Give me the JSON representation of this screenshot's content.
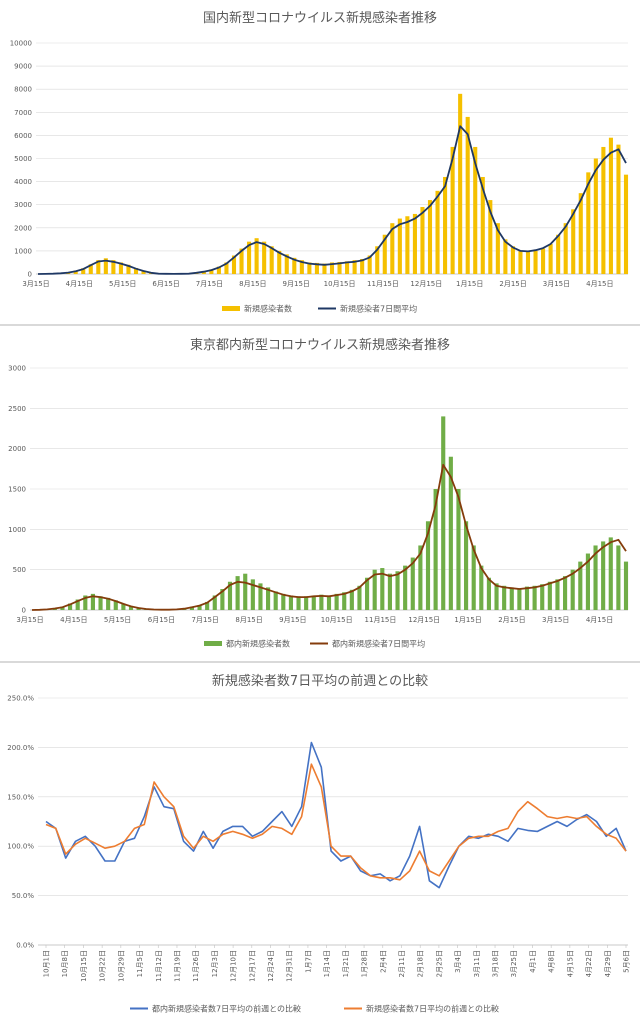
{
  "chart_data": [
    {
      "type": "bar",
      "title": "国内新型コロナウイルス新規感染者推移",
      "x_tick_labels": [
        "3月15日",
        "4月15日",
        "5月15日",
        "6月15日",
        "7月15日",
        "8月15日",
        "9月15日",
        "10月15日",
        "11月15日",
        "12月15日",
        "1月15日",
        "2月15日",
        "3月15日",
        "4月15日"
      ],
      "y_ticks": [
        0,
        1000,
        2000,
        3000,
        4000,
        5000,
        6000,
        7000,
        8000,
        9000,
        10000
      ],
      "ylim": [
        0,
        10000
      ],
      "grid": true,
      "legend_position": "bottom",
      "series": [
        {
          "name": "新規感染者数",
          "kind": "bar",
          "color": "#f5c000",
          "values": [
            0,
            10,
            20,
            40,
            80,
            150,
            250,
            420,
            600,
            680,
            600,
            500,
            400,
            260,
            150,
            60,
            20,
            10,
            5,
            10,
            20,
            60,
            120,
            200,
            320,
            500,
            800,
            1100,
            1400,
            1550,
            1400,
            1200,
            1000,
            850,
            700,
            600,
            500,
            480,
            450,
            500,
            520,
            550,
            600,
            650,
            800,
            1200,
            1700,
            2200,
            2400,
            2500,
            2600,
            2900,
            3200,
            3600,
            4200,
            5500,
            7800,
            6800,
            5500,
            4200,
            3200,
            2200,
            1500,
            1200,
            1000,
            950,
            1000,
            1100,
            1300,
            1700,
            2200,
            2800,
            3500,
            4400,
            5000,
            5500,
            5900,
            5600,
            4300
          ]
        },
        {
          "name": "新規感染者7日間平均",
          "kind": "line",
          "color": "#1f3864",
          "values": [
            0,
            5,
            15,
            30,
            60,
            120,
            210,
            380,
            540,
            580,
            530,
            450,
            350,
            230,
            130,
            50,
            15,
            8,
            5,
            8,
            15,
            50,
            100,
            170,
            280,
            450,
            720,
            1000,
            1250,
            1380,
            1300,
            1120,
            920,
            760,
            620,
            520,
            450,
            420,
            400,
            430,
            460,
            500,
            530,
            590,
            720,
            1050,
            1500,
            1950,
            2150,
            2250,
            2400,
            2650,
            2950,
            3350,
            3800,
            5000,
            6400,
            6050,
            4800,
            3700,
            2700,
            1900,
            1400,
            1150,
            1000,
            980,
            1030,
            1120,
            1300,
            1650,
            2050,
            2600,
            3200,
            3900,
            4500,
            4950,
            5250,
            5400,
            4800
          ]
        }
      ]
    },
    {
      "type": "bar",
      "title": "東京都内新型コロナウイルス新規感染者推移",
      "x_tick_labels": [
        "3月15日",
        "4月15日",
        "5月15日",
        "6月15日",
        "7月15日",
        "8月15日",
        "9月15日",
        "10月15日",
        "11月15日",
        "12月15日",
        "1月15日",
        "2月15日",
        "3月15日",
        "4月15日"
      ],
      "y_ticks": [
        0,
        500,
        1000,
        1500,
        2000,
        2500,
        3000
      ],
      "ylim": [
        0,
        3000
      ],
      "grid": true,
      "legend_position": "bottom",
      "series": [
        {
          "name": "都内新規感染者数",
          "kind": "bar",
          "color": "#70ad47",
          "values": [
            0,
            5,
            10,
            20,
            40,
            80,
            130,
            180,
            200,
            170,
            150,
            120,
            80,
            50,
            30,
            15,
            8,
            5,
            5,
            10,
            20,
            40,
            60,
            100,
            180,
            260,
            350,
            420,
            450,
            380,
            330,
            280,
            230,
            200,
            180,
            170,
            170,
            180,
            190,
            180,
            200,
            220,
            250,
            300,
            400,
            500,
            520,
            450,
            480,
            550,
            650,
            800,
            1100,
            1500,
            2400,
            1900,
            1500,
            1100,
            800,
            550,
            400,
            330,
            300,
            280,
            270,
            290,
            300,
            320,
            350,
            380,
            420,
            500,
            600,
            700,
            800,
            850,
            900,
            800,
            600
          ]
        },
        {
          "name": "都内新規感染者7日間平均",
          "kind": "line",
          "color": "#843c0c",
          "values": [
            0,
            3,
            8,
            18,
            35,
            70,
            110,
            150,
            170,
            160,
            140,
            110,
            75,
            45,
            25,
            12,
            6,
            4,
            4,
            8,
            16,
            35,
            55,
            90,
            160,
            230,
            310,
            350,
            340,
            310,
            280,
            250,
            220,
            190,
            170,
            160,
            160,
            170,
            175,
            170,
            185,
            200,
            230,
            280,
            370,
            440,
            450,
            420,
            440,
            500,
            580,
            700,
            950,
            1300,
            1800,
            1650,
            1400,
            1050,
            750,
            520,
            380,
            300,
            280,
            270,
            260,
            270,
            280,
            300,
            330,
            360,
            400,
            450,
            520,
            600,
            700,
            780,
            840,
            870,
            730
          ]
        }
      ]
    },
    {
      "type": "line",
      "title": "新規感染者数7日平均の前週との比較",
      "x_tick_labels": [
        "10月1日",
        "10月8日",
        "10月15日",
        "10月22日",
        "10月29日",
        "11月5日",
        "11月12日",
        "11月19日",
        "11月26日",
        "12月3日",
        "12月10日",
        "12月17日",
        "12月24日",
        "12月31日",
        "1月7日",
        "1月14日",
        "1月21日",
        "1月28日",
        "2月4日",
        "2月11日",
        "2月18日",
        "2月25日",
        "3月4日",
        "3月11日",
        "3月18日",
        "3月25日",
        "4月1日",
        "4月8日",
        "4月15日",
        "4月22日",
        "4月29日",
        "5月6日"
      ],
      "y_tick_labels": [
        "0.0%",
        "50.0%",
        "100.0%",
        "150.0%",
        "200.0%",
        "250.0%"
      ],
      "ylim": [
        0,
        250
      ],
      "grid": true,
      "legend_position": "bottom",
      "series": [
        {
          "name": "都内新規感染者数7日平均の前週との比較",
          "color": "#4472c4",
          "values": [
            125,
            118,
            88,
            105,
            110,
            100,
            85,
            85,
            105,
            108,
            130,
            160,
            140,
            138,
            105,
            95,
            115,
            98,
            115,
            120,
            120,
            110,
            115,
            125,
            135,
            120,
            140,
            205,
            180,
            95,
            85,
            90,
            75,
            70,
            72,
            65,
            70,
            90,
            120,
            65,
            58,
            80,
            100,
            110,
            108,
            112,
            110,
            105,
            118,
            116,
            115,
            120,
            125,
            120,
            127,
            132,
            125,
            110,
            118,
            95
          ]
        },
        {
          "name": "新規感染者数7日平均の前週との比較",
          "color": "#ed7d31",
          "values": [
            122,
            118,
            92,
            102,
            108,
            103,
            98,
            100,
            105,
            118,
            122,
            165,
            150,
            140,
            110,
            98,
            110,
            105,
            112,
            115,
            112,
            108,
            112,
            120,
            118,
            112,
            130,
            183,
            160,
            100,
            90,
            90,
            78,
            70,
            68,
            68,
            66,
            75,
            95,
            75,
            70,
            85,
            100,
            108,
            110,
            110,
            115,
            118,
            135,
            145,
            138,
            130,
            128,
            130,
            128,
            130,
            120,
            112,
            108,
            95
          ]
        }
      ]
    }
  ]
}
